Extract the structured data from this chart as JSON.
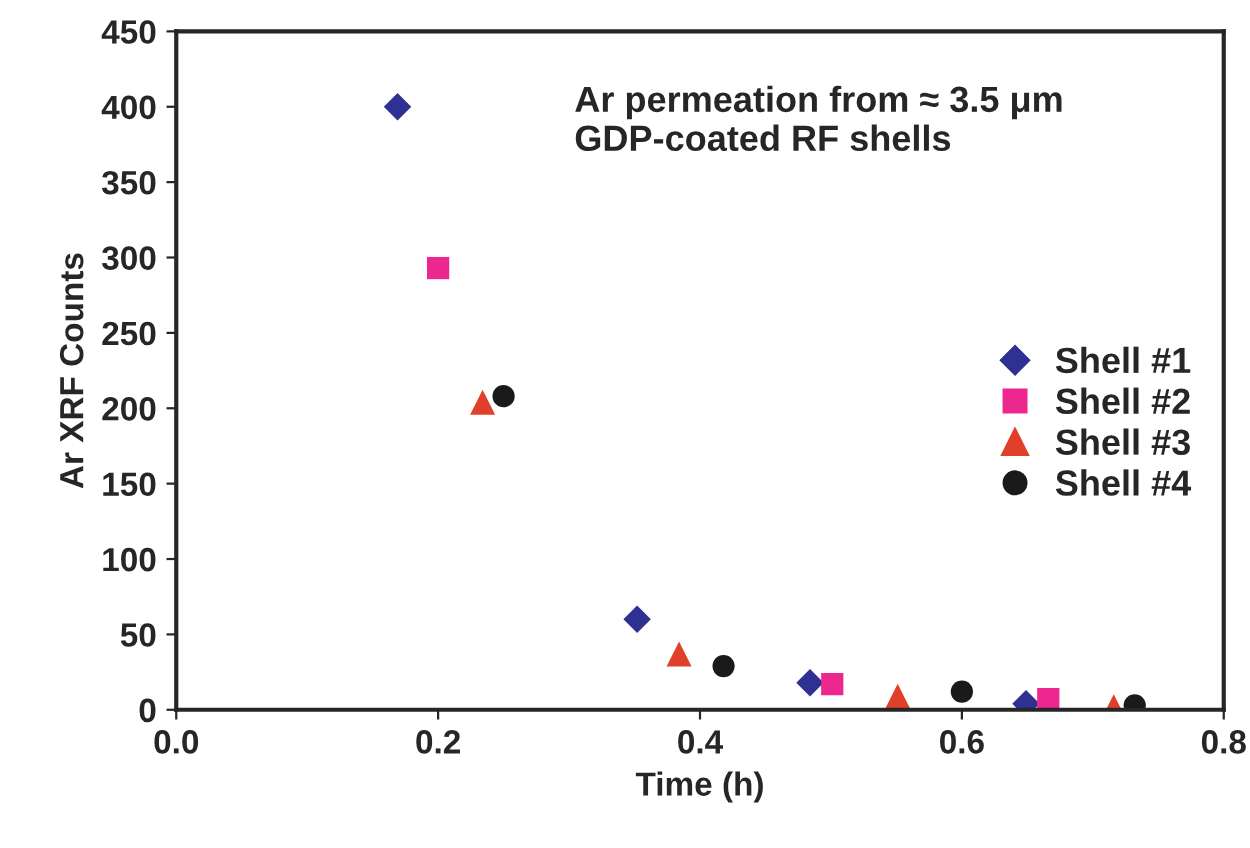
{
  "chart_data": {
    "type": "scatter",
    "xlabel": "Time (h)",
    "ylabel": "Ar XRF Counts",
    "xlim": [
      0.0,
      0.8
    ],
    "xticks": [
      {
        "value": 0,
        "label": "0.0"
      },
      {
        "value": 0.2,
        "label": "0.2"
      },
      {
        "value": 0.4,
        "label": "0.4"
      },
      {
        "value": 0.6,
        "label": "0.6"
      },
      {
        "value": 0.8,
        "label": "0.8"
      }
    ],
    "ylim": [
      0,
      450
    ],
    "yticks": [
      0,
      50,
      100,
      150,
      200,
      250,
      300,
      350,
      400,
      450
    ],
    "grid": false,
    "legend": "right",
    "annotations": [
      "Ar permeation from ≈ 3.5 μm\nGDP-coated RF shells"
    ],
    "series": [
      {
        "name": "Shell #1",
        "color": "#2e3192",
        "marker": "diamond",
        "x": [
          0.169,
          0.352,
          0.484,
          0.649
        ],
        "values": [
          400,
          60,
          18,
          4
        ]
      },
      {
        "name": "Shell #2",
        "color": "#ec2790",
        "marker": "square",
        "x": [
          0.2,
          0.501,
          0.666
        ],
        "values": [
          293,
          17,
          7
        ]
      },
      {
        "name": "Shell #3",
        "color": "#e0402a",
        "marker": "triangle",
        "x": [
          0.234,
          0.384,
          0.551,
          0.716
        ],
        "values": [
          204,
          37,
          9,
          2
        ]
      },
      {
        "name": "Shell #4",
        "color": "#1a1a1a",
        "marker": "circle",
        "x": [
          0.25,
          0.418,
          0.6,
          0.732
        ],
        "values": [
          208,
          29,
          12,
          3
        ]
      }
    ]
  }
}
